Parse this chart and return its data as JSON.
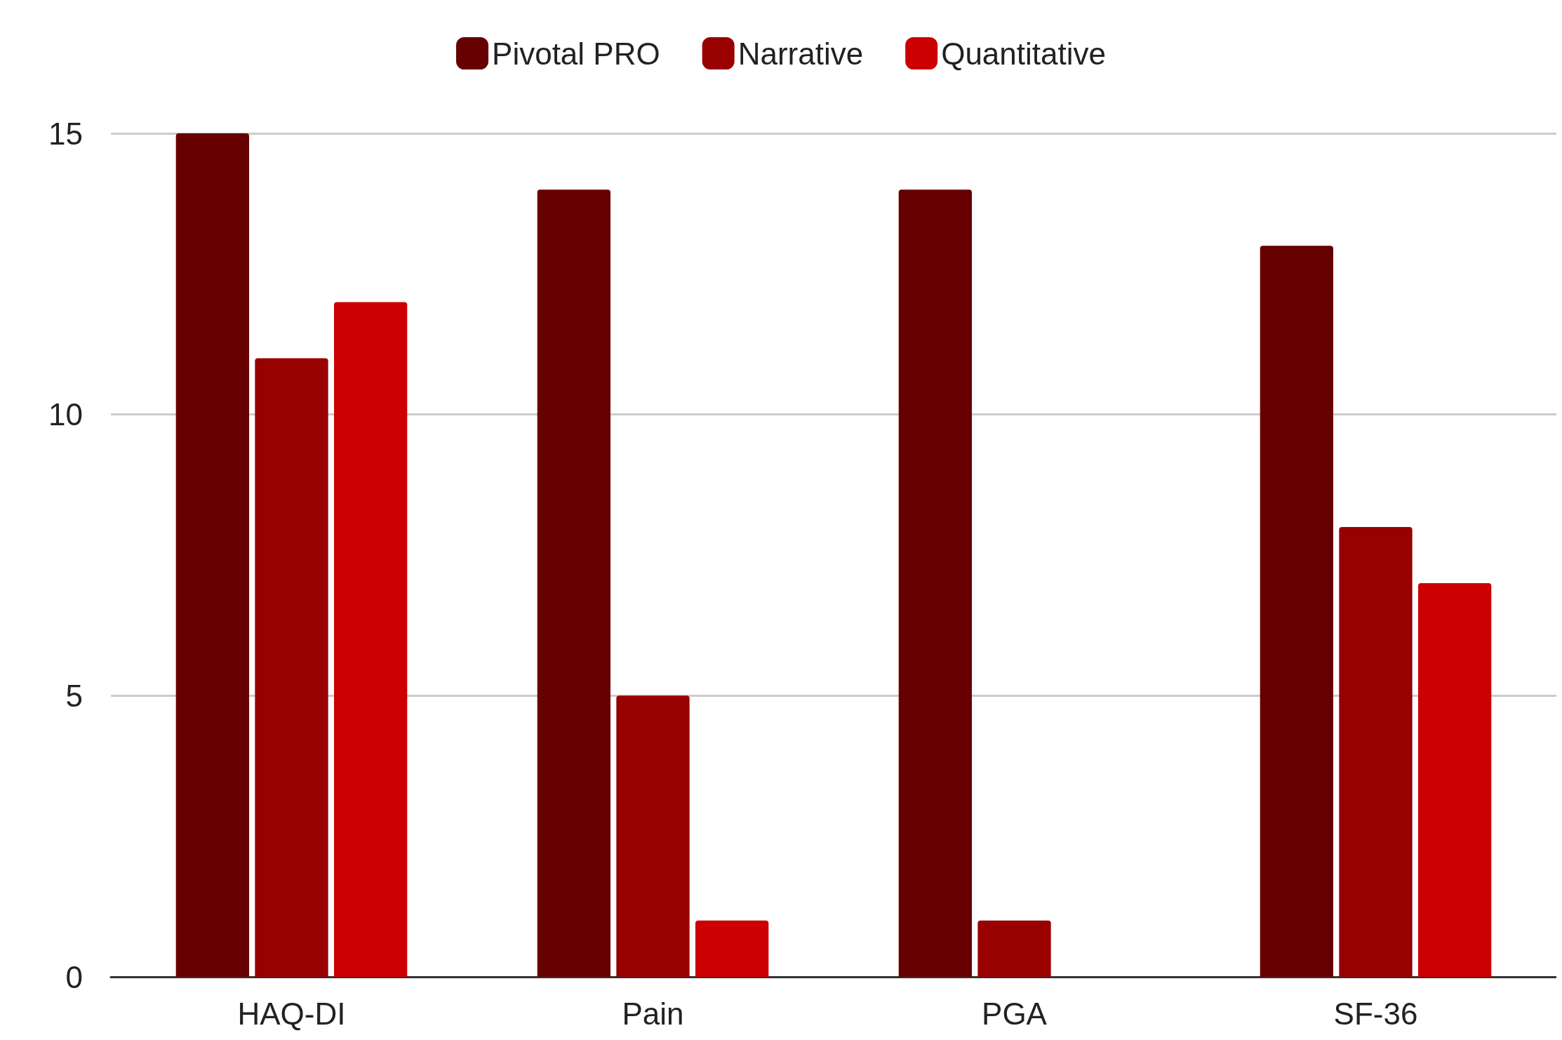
{
  "chart_data": {
    "type": "bar",
    "categories": [
      "HAQ-DI",
      "Pain",
      "PGA",
      "SF-36"
    ],
    "series": [
      {
        "name": "Pivotal PRO",
        "color": "#660000",
        "values": [
          15,
          14,
          14,
          13
        ]
      },
      {
        "name": "Narrative",
        "color": "#990000",
        "values": [
          11,
          5,
          1,
          8
        ]
      },
      {
        "name": "Quantitative",
        "color": "#cc0000",
        "values": [
          12,
          1,
          0,
          7
        ]
      }
    ],
    "ylim": [
      0,
      15
    ],
    "yticks": [
      0,
      5,
      10,
      15
    ],
    "grid": "y",
    "legend": "top"
  }
}
